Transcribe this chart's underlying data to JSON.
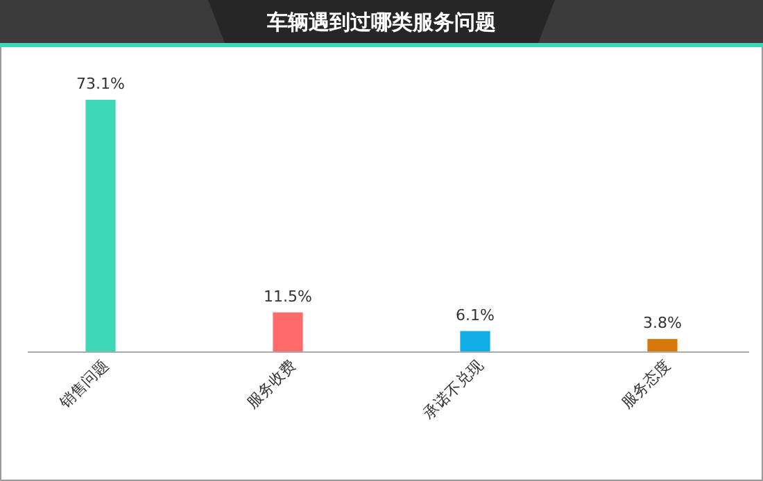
{
  "chart_data": {
    "type": "bar",
    "title": "车辆遇到过哪类服务问题",
    "categories": [
      "销售问题",
      "服务收费",
      "承诺不兑现",
      "服务态度"
    ],
    "values": [
      73.1,
      11.5,
      6.1,
      3.8
    ],
    "colors": [
      "#3dd6b6",
      "#ff6b6b",
      "#12aee8",
      "#d9770b"
    ],
    "value_labels": [
      "73.1%",
      "11.5%",
      "6.1%",
      "3.8%"
    ],
    "grid": false
  }
}
